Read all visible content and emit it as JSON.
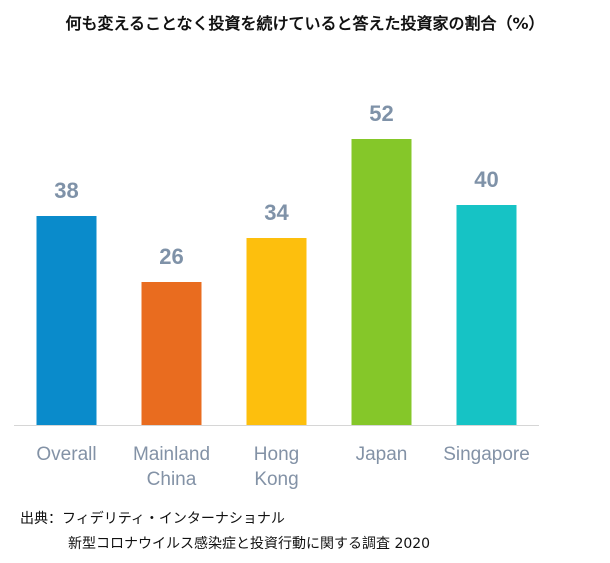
{
  "chart_data": {
    "type": "bar",
    "title": "何も変えることなく投資を続けていると答えた投資家の割合（%）",
    "categories": [
      [
        "Overall"
      ],
      [
        "Mainland",
        "China"
      ],
      [
        "Hong",
        "Kong"
      ],
      [
        "Japan"
      ],
      [
        "Singapore"
      ]
    ],
    "values": [
      38,
      26,
      34,
      52,
      40
    ],
    "colors": [
      "#0a8bcb",
      "#e96c1f",
      "#fdbf0d",
      "#85c729",
      "#16c3c5"
    ],
    "ylim": [
      0,
      52
    ],
    "grid": false,
    "legend": false
  },
  "styles": {
    "value_label_color": "#7f92a8",
    "category_label_color": "#8392a6",
    "baseline_color": "#d6d6d6"
  },
  "source": {
    "line1": "出典：フィデリティ・インターナショナル",
    "line2": "新型コロナウイルス感染症と投資行動に関する調査 2020"
  }
}
